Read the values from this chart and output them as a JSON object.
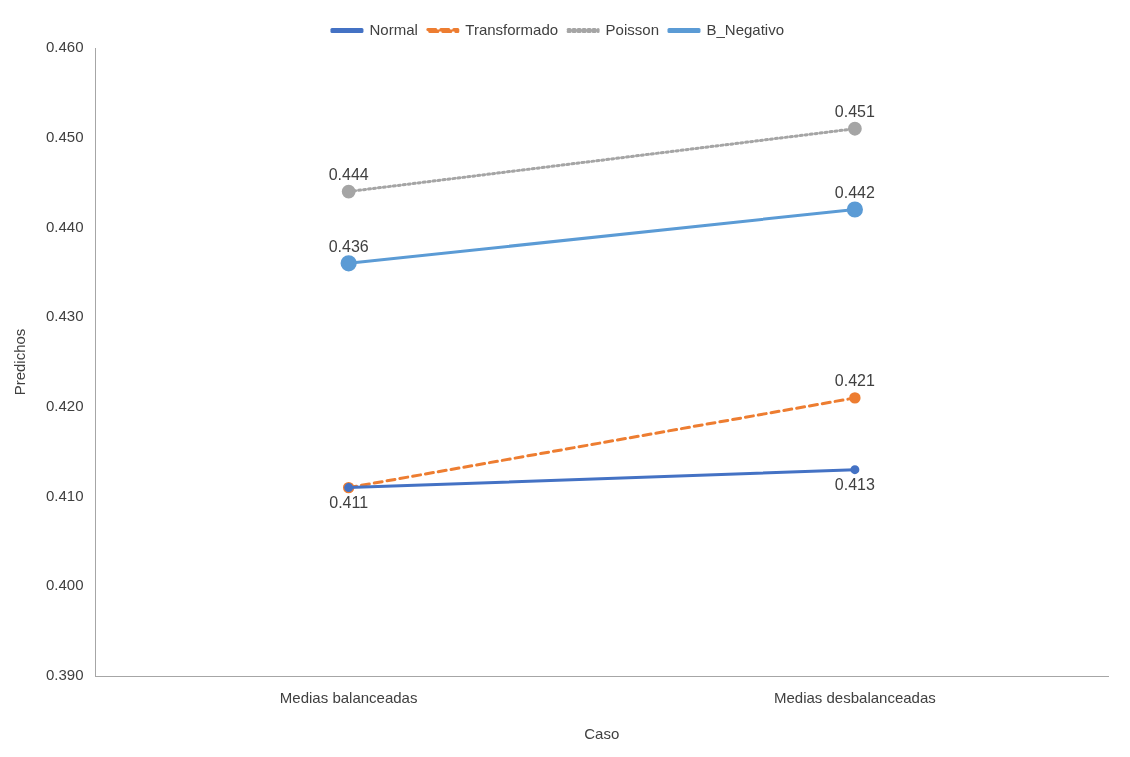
{
  "chart_data": {
    "type": "line",
    "xlabel": "Caso",
    "ylabel": "Predichos",
    "categories": [
      "Medias balanceadas",
      "Medias desbalanceadas"
    ],
    "series": [
      {
        "name": "Normal",
        "color": "#4472c4",
        "line_style": "solid",
        "values": [
          0.411,
          0.413
        ],
        "value_labels": [
          "0.411",
          "0.413"
        ]
      },
      {
        "name": "Transformado",
        "color": "#ed7d31",
        "line_style": "dashed",
        "values": [
          0.411,
          0.421
        ],
        "value_labels": [
          null,
          "0.421"
        ]
      },
      {
        "name": "Poisson",
        "color": "#a5a5a5",
        "line_style": "dotted",
        "values": [
          0.444,
          0.451
        ],
        "value_labels": [
          "0.444",
          "0.451"
        ]
      },
      {
        "name": "B_Negativo",
        "color": "#5b9bd5",
        "line_style": "solid",
        "values": [
          0.436,
          0.442
        ],
        "value_labels": [
          "0.436",
          "0.442"
        ]
      }
    ],
    "ylim": [
      0.39,
      0.46
    ],
    "yticks": [
      {
        "value": 0.39,
        "label": "0.390"
      },
      {
        "value": 0.4,
        "label": "0.400"
      },
      {
        "value": 0.41,
        "label": "0.410"
      },
      {
        "value": 0.42,
        "label": "0.420"
      },
      {
        "value": 0.43,
        "label": "0.430"
      },
      {
        "value": 0.44,
        "label": "0.440"
      },
      {
        "value": 0.45,
        "label": "0.450"
      },
      {
        "value": 0.46,
        "label": "0.460"
      }
    ],
    "grid": false,
    "legend": "top",
    "marker": "circle"
  }
}
